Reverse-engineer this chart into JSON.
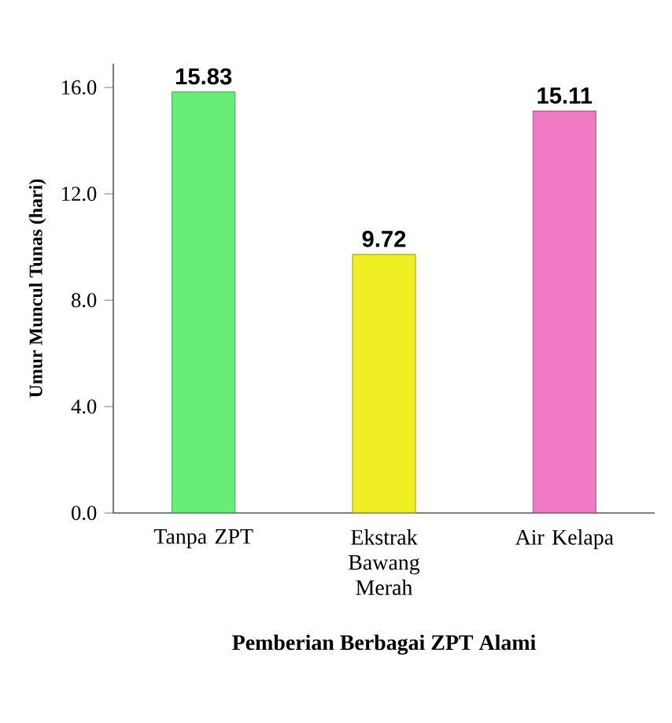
{
  "chart_data": {
    "type": "bar",
    "xlabel": "Pemberian Berbagai ZPT Alami",
    "ylabel": "Umur Muncul Tunas (hari)",
    "categories": [
      "Tanpa ZPT",
      "Ekstrak Bawang Merah",
      "Air Kelapa"
    ],
    "values": [
      15.83,
      9.72,
      15.11
    ],
    "colors": [
      "#66ee77",
      "#eeee22",
      "#f07ac4"
    ],
    "ylim": [
      0,
      16.9
    ],
    "yticks": [
      {
        "value": 0,
        "label": "0.0"
      },
      {
        "value": 4,
        "label": "4.0"
      },
      {
        "value": 8,
        "label": "8.0"
      },
      {
        "value": 12,
        "label": "12.0"
      },
      {
        "value": 16,
        "label": "16.0"
      }
    ],
    "data_labels": true,
    "grid": false
  }
}
